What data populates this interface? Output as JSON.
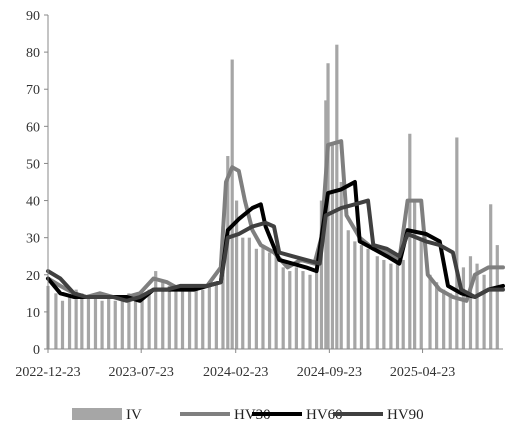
{
  "chart_data": {
    "type": "line",
    "title": "",
    "xlabel": "",
    "ylabel": "",
    "ylim": [
      0,
      90
    ],
    "yticks": [
      0,
      10,
      20,
      30,
      40,
      50,
      60,
      70,
      80,
      90
    ],
    "xticks": [
      "2022-12-23",
      "2023-07-23",
      "2024-02-23",
      "2024-09-23",
      "2025-04-23"
    ],
    "x_range": [
      "2022-12-23",
      "2025-10-23"
    ],
    "grid": false,
    "legend_position": "bottom",
    "colors": {
      "IV": "#a6a6a6",
      "HV30": "#7f7f7f",
      "HV60": "#000000",
      "HV90": "#404040",
      "axis": "#888888"
    },
    "series": [
      {
        "name": "IV",
        "style": "bar",
        "points": [
          [
            "2022-12-23",
            17
          ],
          [
            "2023-01-10",
            15
          ],
          [
            "2023-01-25",
            13
          ],
          [
            "2023-02-10",
            14
          ],
          [
            "2023-02-25",
            16
          ],
          [
            "2023-03-10",
            15
          ],
          [
            "2023-03-25",
            14
          ],
          [
            "2023-04-10",
            14
          ],
          [
            "2023-04-25",
            13
          ],
          [
            "2023-05-10",
            14
          ],
          [
            "2023-05-25",
            13
          ],
          [
            "2023-06-10",
            14
          ],
          [
            "2023-06-25",
            15
          ],
          [
            "2023-07-10",
            15
          ],
          [
            "2023-07-25",
            14
          ],
          [
            "2023-08-10",
            16
          ],
          [
            "2023-08-25",
            21
          ],
          [
            "2023-09-10",
            18
          ],
          [
            "2023-09-25",
            17
          ],
          [
            "2023-10-10",
            17
          ],
          [
            "2023-10-25",
            16
          ],
          [
            "2023-11-10",
            17
          ],
          [
            "2023-11-25",
            16
          ],
          [
            "2023-12-10",
            16
          ],
          [
            "2023-12-25",
            17
          ],
          [
            "2024-01-10",
            18
          ],
          [
            "2024-01-25",
            33
          ],
          [
            "2024-02-05",
            52
          ],
          [
            "2024-02-15",
            78
          ],
          [
            "2024-02-25",
            40
          ],
          [
            "2024-03-10",
            30
          ],
          [
            "2024-03-25",
            30
          ],
          [
            "2024-04-10",
            27
          ],
          [
            "2024-04-25",
            28
          ],
          [
            "2024-05-10",
            26
          ],
          [
            "2024-05-25",
            25
          ],
          [
            "2024-06-10",
            22
          ],
          [
            "2024-06-25",
            21
          ],
          [
            "2024-07-10",
            22
          ],
          [
            "2024-07-25",
            21
          ],
          [
            "2024-08-10",
            20
          ],
          [
            "2024-08-25",
            23
          ],
          [
            "2024-09-05",
            40
          ],
          [
            "2024-09-15",
            67
          ],
          [
            "2024-09-20",
            77
          ],
          [
            "2024-09-30",
            55
          ],
          [
            "2024-10-10",
            82
          ],
          [
            "2024-10-20",
            45
          ],
          [
            "2024-11-05",
            32
          ],
          [
            "2024-11-20",
            29
          ],
          [
            "2024-12-05",
            28
          ],
          [
            "2024-12-20",
            27
          ],
          [
            "2025-01-10",
            25
          ],
          [
            "2025-01-25",
            24
          ],
          [
            "2025-02-10",
            23
          ],
          [
            "2025-02-25",
            25
          ],
          [
            "2025-03-10",
            24
          ],
          [
            "2025-03-25",
            58
          ],
          [
            "2025-04-05",
            40
          ],
          [
            "2025-04-20",
            30
          ],
          [
            "2025-05-10",
            20
          ],
          [
            "2025-05-25",
            18
          ],
          [
            "2025-06-10",
            16
          ],
          [
            "2025-06-25",
            15
          ],
          [
            "2025-07-10",
            57
          ],
          [
            "2025-07-25",
            22
          ],
          [
            "2025-08-10",
            25
          ],
          [
            "2025-08-25",
            23
          ],
          [
            "2025-09-10",
            20
          ],
          [
            "2025-09-25",
            39
          ],
          [
            "2025-10-10",
            28
          ]
        ]
      },
      {
        "name": "HV30",
        "style": "line",
        "points": [
          [
            "2022-12-23",
            19
          ],
          [
            "2023-01-20",
            17
          ],
          [
            "2023-02-20",
            15
          ],
          [
            "2023-03-20",
            14
          ],
          [
            "2023-04-20",
            15
          ],
          [
            "2023-05-20",
            14
          ],
          [
            "2023-06-20",
            14
          ],
          [
            "2023-07-20",
            15
          ],
          [
            "2023-08-20",
            19
          ],
          [
            "2023-09-20",
            18
          ],
          [
            "2023-10-20",
            16
          ],
          [
            "2023-11-20",
            16
          ],
          [
            "2023-12-20",
            17
          ],
          [
            "2024-01-20",
            22
          ],
          [
            "2024-02-01",
            45
          ],
          [
            "2024-02-15",
            49
          ],
          [
            "2024-03-01",
            48
          ],
          [
            "2024-03-15",
            40
          ],
          [
            "2024-04-01",
            32
          ],
          [
            "2024-04-20",
            28
          ],
          [
            "2024-05-20",
            26
          ],
          [
            "2024-06-20",
            22
          ],
          [
            "2024-07-20",
            24
          ],
          [
            "2024-08-20",
            23
          ],
          [
            "2024-09-05",
            30
          ],
          [
            "2024-09-20",
            55
          ],
          [
            "2024-10-20",
            56
          ],
          [
            "2024-11-01",
            36
          ],
          [
            "2024-12-01",
            30
          ],
          [
            "2025-01-01",
            27
          ],
          [
            "2025-02-01",
            26
          ],
          [
            "2025-03-01",
            24
          ],
          [
            "2025-03-20",
            40
          ],
          [
            "2025-04-20",
            40
          ],
          [
            "2025-05-05",
            20
          ],
          [
            "2025-06-01",
            16
          ],
          [
            "2025-07-01",
            14
          ],
          [
            "2025-08-01",
            13
          ],
          [
            "2025-08-20",
            20
          ],
          [
            "2025-09-20",
            22
          ],
          [
            "2025-10-23",
            22
          ]
        ]
      },
      {
        "name": "HV60",
        "style": "line",
        "points": [
          [
            "2022-12-23",
            19
          ],
          [
            "2023-01-20",
            15
          ],
          [
            "2023-02-20",
            14
          ],
          [
            "2023-03-20",
            14
          ],
          [
            "2023-04-20",
            14
          ],
          [
            "2023-05-20",
            14
          ],
          [
            "2023-06-20",
            14
          ],
          [
            "2023-07-20",
            13
          ],
          [
            "2023-08-20",
            16
          ],
          [
            "2023-09-20",
            16
          ],
          [
            "2023-10-20",
            16
          ],
          [
            "2023-11-20",
            16
          ],
          [
            "2023-12-20",
            17
          ],
          [
            "2024-01-20",
            18
          ],
          [
            "2024-02-05",
            32
          ],
          [
            "2024-03-01",
            35
          ],
          [
            "2024-04-01",
            38
          ],
          [
            "2024-04-20",
            39
          ],
          [
            "2024-05-01",
            33
          ],
          [
            "2024-06-01",
            24
          ],
          [
            "2024-07-01",
            23
          ],
          [
            "2024-08-01",
            22
          ],
          [
            "2024-08-25",
            21
          ],
          [
            "2024-09-05",
            30
          ],
          [
            "2024-09-20",
            42
          ],
          [
            "2024-10-20",
            43
          ],
          [
            "2024-11-20",
            45
          ],
          [
            "2024-12-01",
            29
          ],
          [
            "2025-01-01",
            27
          ],
          [
            "2025-02-01",
            25
          ],
          [
            "2025-03-01",
            23
          ],
          [
            "2025-03-20",
            32
          ],
          [
            "2025-05-01",
            31
          ],
          [
            "2025-06-01",
            29
          ],
          [
            "2025-06-20",
            17
          ],
          [
            "2025-07-20",
            15
          ],
          [
            "2025-08-20",
            14
          ],
          [
            "2025-09-20",
            16
          ],
          [
            "2025-10-23",
            17
          ]
        ]
      },
      {
        "name": "HV90",
        "style": "line",
        "points": [
          [
            "2022-12-23",
            21
          ],
          [
            "2023-01-20",
            19
          ],
          [
            "2023-02-20",
            15
          ],
          [
            "2023-03-20",
            14
          ],
          [
            "2023-04-20",
            14
          ],
          [
            "2023-05-20",
            14
          ],
          [
            "2023-06-20",
            13
          ],
          [
            "2023-07-20",
            14
          ],
          [
            "2023-08-20",
            16
          ],
          [
            "2023-09-20",
            16
          ],
          [
            "2023-10-20",
            17
          ],
          [
            "2023-11-20",
            17
          ],
          [
            "2023-12-20",
            17
          ],
          [
            "2024-01-20",
            18
          ],
          [
            "2024-02-05",
            30
          ],
          [
            "2024-03-01",
            31
          ],
          [
            "2024-04-01",
            33
          ],
          [
            "2024-05-01",
            34
          ],
          [
            "2024-05-20",
            33
          ],
          [
            "2024-06-01",
            26
          ],
          [
            "2024-07-01",
            25
          ],
          [
            "2024-08-01",
            24
          ],
          [
            "2024-09-01",
            23
          ],
          [
            "2024-09-15",
            36
          ],
          [
            "2024-10-20",
            38
          ],
          [
            "2024-11-20",
            39
          ],
          [
            "2024-12-20",
            40
          ],
          [
            "2025-01-01",
            28
          ],
          [
            "2025-02-01",
            27
          ],
          [
            "2025-03-01",
            25
          ],
          [
            "2025-03-20",
            31
          ],
          [
            "2025-05-01",
            29
          ],
          [
            "2025-06-01",
            28
          ],
          [
            "2025-07-01",
            26
          ],
          [
            "2025-07-20",
            16
          ],
          [
            "2025-08-20",
            14
          ],
          [
            "2025-09-20",
            16
          ],
          [
            "2025-10-23",
            16
          ]
        ]
      }
    ]
  }
}
